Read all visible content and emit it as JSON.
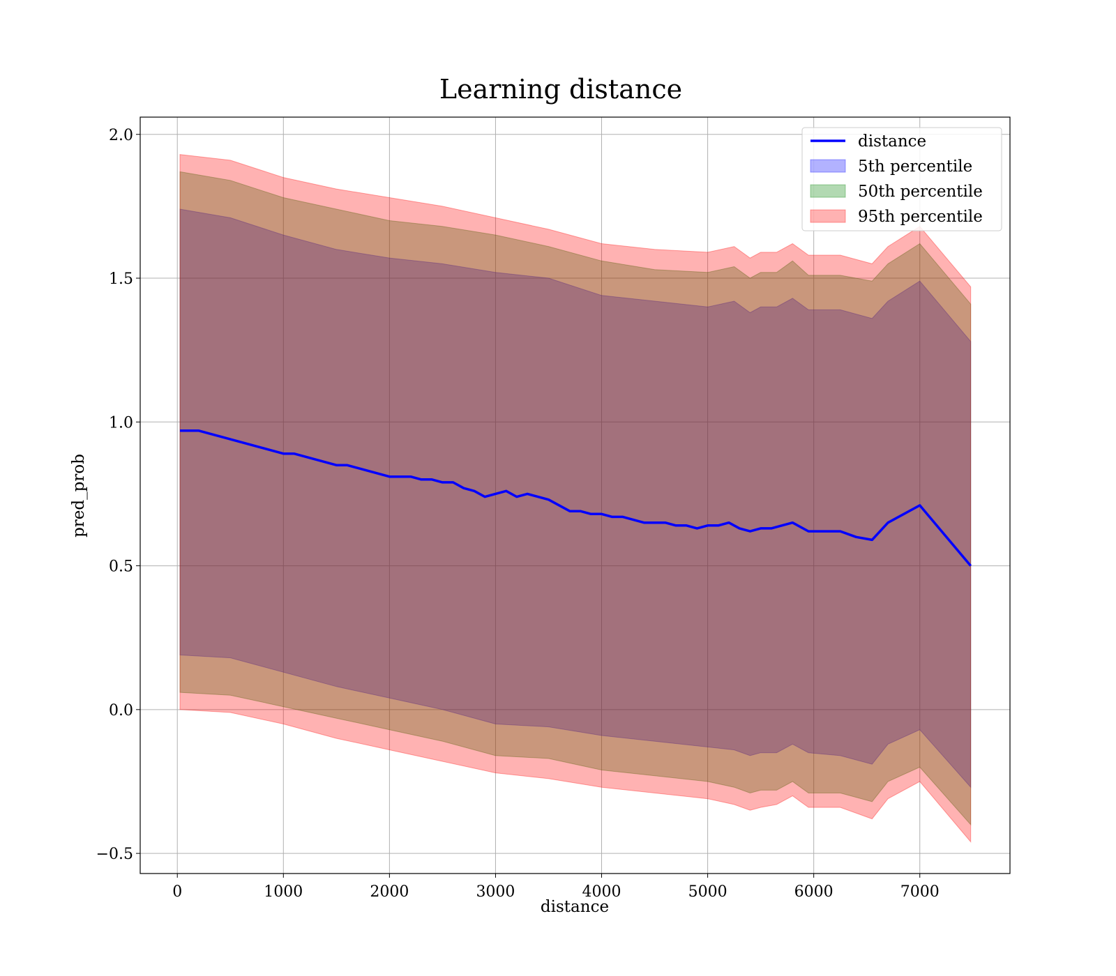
{
  "chart_data": {
    "type": "line",
    "title": "Learning distance",
    "xlabel": "distance",
    "ylabel": "pred_prob",
    "xlim": [
      -350,
      7850
    ],
    "ylim": [
      -0.57,
      2.06
    ],
    "x_ticks": [
      0,
      1000,
      2000,
      3000,
      4000,
      5000,
      6000,
      7000
    ],
    "x_tick_labels": [
      "0",
      "1000",
      "2000",
      "3000",
      "4000",
      "5000",
      "6000",
      "7000"
    ],
    "y_ticks": [
      -0.5,
      0.0,
      0.5,
      1.0,
      1.5,
      2.0
    ],
    "y_tick_labels": [
      "−0.5",
      "0.0",
      "0.5",
      "1.0",
      "1.5",
      "2.0"
    ],
    "grid": true,
    "legend_position": "top-right",
    "legend": [
      {
        "label": "distance",
        "kind": "line",
        "color": "#0000ff"
      },
      {
        "label": "5th percentile",
        "kind": "patch",
        "color": "#0000ff"
      },
      {
        "label": "50th percentile",
        "kind": "patch",
        "color": "#008000"
      },
      {
        "label": "95th percentile",
        "kind": "patch",
        "color": "#ff0000"
      }
    ],
    "line_series": {
      "name": "distance",
      "color": "#0000ff",
      "x": [
        25,
        100,
        200,
        300,
        400,
        500,
        600,
        700,
        800,
        900,
        1000,
        1100,
        1200,
        1300,
        1400,
        1500,
        1600,
        1700,
        1800,
        1900,
        2000,
        2100,
        2200,
        2300,
        2400,
        2500,
        2600,
        2700,
        2800,
        2900,
        3000,
        3100,
        3200,
        3300,
        3400,
        3500,
        3600,
        3700,
        3800,
        3900,
        4000,
        4100,
        4200,
        4300,
        4400,
        4500,
        4600,
        4700,
        4800,
        4900,
        5000,
        5100,
        5200,
        5300,
        5400,
        5500,
        5600,
        5700,
        5800,
        5950,
        6100,
        6250,
        6400,
        6550,
        6700,
        7000,
        7480
      ],
      "y": [
        0.97,
        0.97,
        0.97,
        0.96,
        0.95,
        0.94,
        0.93,
        0.92,
        0.91,
        0.9,
        0.89,
        0.89,
        0.88,
        0.87,
        0.86,
        0.85,
        0.85,
        0.84,
        0.83,
        0.82,
        0.81,
        0.81,
        0.81,
        0.8,
        0.8,
        0.79,
        0.79,
        0.77,
        0.76,
        0.74,
        0.75,
        0.76,
        0.74,
        0.75,
        0.74,
        0.73,
        0.71,
        0.69,
        0.69,
        0.68,
        0.68,
        0.67,
        0.67,
        0.66,
        0.65,
        0.65,
        0.65,
        0.64,
        0.64,
        0.63,
        0.64,
        0.64,
        0.65,
        0.63,
        0.62,
        0.63,
        0.63,
        0.64,
        0.65,
        0.62,
        0.62,
        0.62,
        0.6,
        0.59,
        0.65,
        0.71,
        0.5
      ]
    },
    "band_x": [
      25,
      500,
      1000,
      1500,
      2000,
      2500,
      3000,
      3500,
      4000,
      4500,
      5000,
      5250,
      5400,
      5500,
      5650,
      5800,
      5950,
      6250,
      6550,
      6700,
      7000,
      7480
    ],
    "bands": [
      {
        "name": "5th percentile",
        "color": "#0000ff",
        "opacity": 0.3,
        "upper": [
          1.74,
          1.71,
          1.65,
          1.6,
          1.57,
          1.55,
          1.52,
          1.5,
          1.44,
          1.42,
          1.4,
          1.42,
          1.38,
          1.4,
          1.4,
          1.43,
          1.39,
          1.39,
          1.36,
          1.42,
          1.49,
          1.28
        ],
        "lower": [
          0.19,
          0.18,
          0.13,
          0.08,
          0.04,
          0.0,
          -0.05,
          -0.06,
          -0.09,
          -0.11,
          -0.13,
          -0.14,
          -0.16,
          -0.15,
          -0.15,
          -0.12,
          -0.15,
          -0.16,
          -0.19,
          -0.12,
          -0.07,
          -0.27
        ]
      },
      {
        "name": "50th percentile",
        "color": "#008000",
        "opacity": 0.3,
        "upper": [
          1.87,
          1.84,
          1.78,
          1.74,
          1.7,
          1.68,
          1.65,
          1.61,
          1.56,
          1.53,
          1.52,
          1.54,
          1.5,
          1.52,
          1.52,
          1.56,
          1.51,
          1.51,
          1.49,
          1.55,
          1.62,
          1.41
        ],
        "lower": [
          0.06,
          0.05,
          0.01,
          -0.03,
          -0.07,
          -0.11,
          -0.16,
          -0.17,
          -0.21,
          -0.23,
          -0.25,
          -0.27,
          -0.29,
          -0.28,
          -0.28,
          -0.25,
          -0.29,
          -0.29,
          -0.32,
          -0.25,
          -0.2,
          -0.4
        ]
      },
      {
        "name": "95th percentile",
        "color": "#ff0000",
        "opacity": 0.3,
        "upper": [
          1.93,
          1.91,
          1.85,
          1.81,
          1.78,
          1.75,
          1.71,
          1.67,
          1.62,
          1.6,
          1.59,
          1.61,
          1.57,
          1.59,
          1.59,
          1.62,
          1.58,
          1.58,
          1.55,
          1.61,
          1.68,
          1.47
        ],
        "lower": [
          0.0,
          -0.01,
          -0.05,
          -0.1,
          -0.14,
          -0.18,
          -0.22,
          -0.24,
          -0.27,
          -0.29,
          -0.31,
          -0.33,
          -0.35,
          -0.34,
          -0.33,
          -0.3,
          -0.34,
          -0.34,
          -0.38,
          -0.31,
          -0.25,
          -0.46
        ]
      }
    ]
  }
}
